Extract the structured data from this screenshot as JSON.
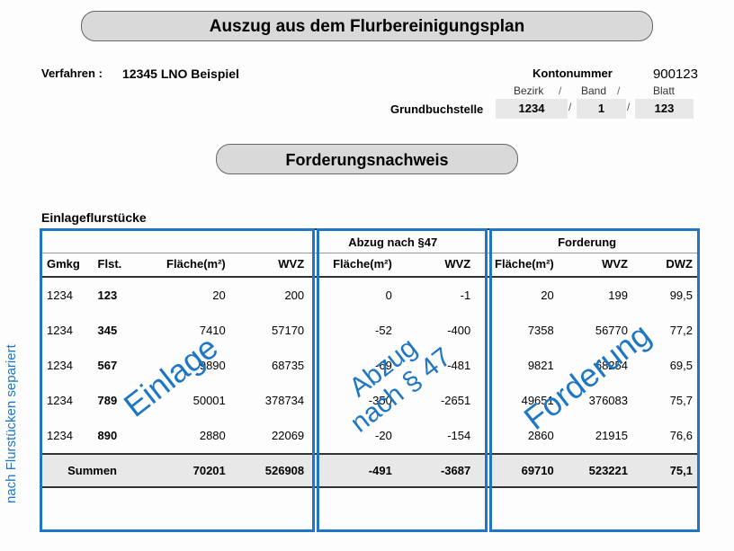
{
  "title": "Auszug aus dem Flurbereinigungsplan",
  "subtitle": "Forderungsnachweis",
  "labels": {
    "verfahren": "Verfahren :",
    "kontonummer": "Kontonummer",
    "grundbuchstelle": "Grundbuchstelle",
    "bezirk": "Bezirk",
    "band": "Band",
    "blatt": "Blatt",
    "slash": "/",
    "section": "Einlageflurstücke",
    "summen": "Summen"
  },
  "header_values": {
    "verfahren": "12345 LNO Beispiel",
    "kontonummer": "900123",
    "bezirk": "1234",
    "band": "1",
    "blatt": "123"
  },
  "columns": {
    "gmkg": "Gmkg",
    "flst": "Flst.",
    "flaeche": "Fläche(m²)",
    "wvz": "WVZ",
    "dwz": "DWZ",
    "group_abzug": "Abzug nach §47",
    "group_forderung": "Forderung"
  },
  "rows": [
    {
      "gmkg": "1234",
      "flst": "123",
      "e_fl": "20",
      "e_wvz": "200",
      "a_fl": "0",
      "a_wvz": "-1",
      "f_fl": "20",
      "f_wvz": "199",
      "dwz": "99,5"
    },
    {
      "gmkg": "1234",
      "flst": "345",
      "e_fl": "7410",
      "e_wvz": "57170",
      "a_fl": "-52",
      "a_wvz": "-400",
      "f_fl": "7358",
      "f_wvz": "56770",
      "dwz": "77,2"
    },
    {
      "gmkg": "1234",
      "flst": "567",
      "e_fl": "9890",
      "e_wvz": "68735",
      "a_fl": "-69",
      "a_wvz": "-481",
      "f_fl": "9821",
      "f_wvz": "68254",
      "dwz": "69,5"
    },
    {
      "gmkg": "1234",
      "flst": "789",
      "e_fl": "50001",
      "e_wvz": "378734",
      "a_fl": "-350",
      "a_wvz": "-2651",
      "f_fl": "49651",
      "f_wvz": "376083",
      "dwz": "75,7"
    },
    {
      "gmkg": "1234",
      "flst": "890",
      "e_fl": "2880",
      "e_wvz": "22069",
      "a_fl": "-20",
      "a_wvz": "-154",
      "f_fl": "2860",
      "f_wvz": "21915",
      "dwz": "76,6"
    }
  ],
  "totals": {
    "e_fl": "70201",
    "e_wvz": "526908",
    "a_fl": "-491",
    "a_wvz": "-3687",
    "f_fl": "69710",
    "f_wvz": "523221",
    "dwz": "75,1"
  },
  "overlays": {
    "einlage": "Einlage",
    "abzug": "Abzug\nnach § 47",
    "forderung": "Forderung",
    "side": "nach Flurstücken separiert"
  },
  "colors": {
    "pillBg": "#d9d9d9",
    "accent": "#1f77c4",
    "grayBox": "#e8e8e8"
  }
}
